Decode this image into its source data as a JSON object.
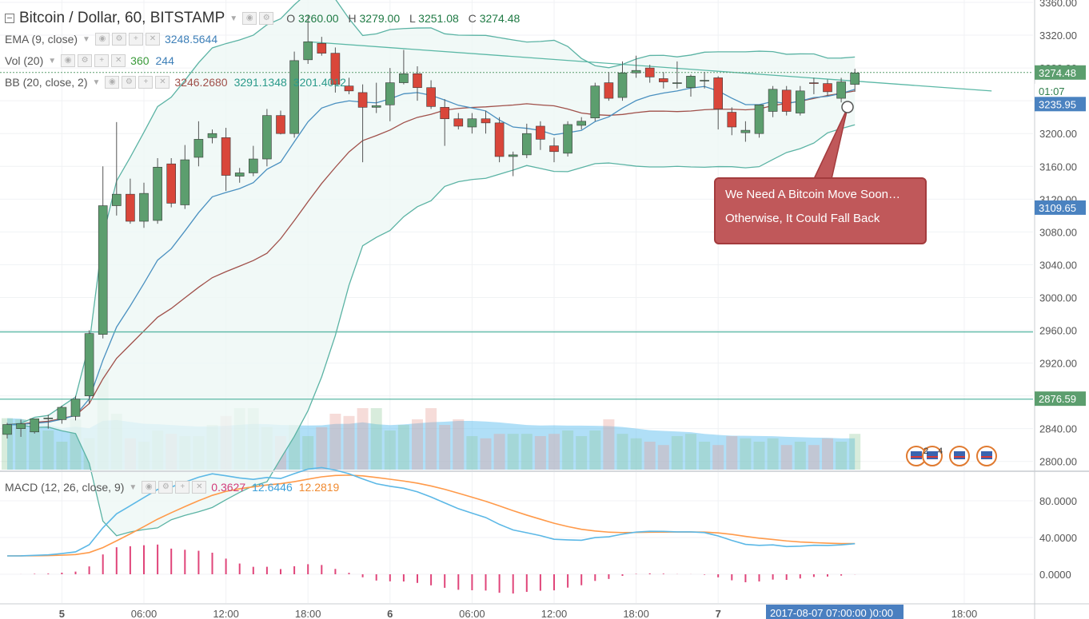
{
  "header": {
    "title": "Bitcoin / Dollar, 60, BITSTAMP",
    "ohlc": {
      "o_label": "O",
      "o": "3260.00",
      "h_label": "H",
      "h": "3279.00",
      "l_label": "L",
      "l": "3251.08",
      "c_label": "C",
      "c": "3274.48"
    }
  },
  "indicators": {
    "ema": {
      "name": "EMA (9, close)",
      "value": "3248.5644"
    },
    "vol": {
      "name": "Vol (20)",
      "value1": "360",
      "value2": "244"
    },
    "bb": {
      "name": "BB (20, close, 2)",
      "v1": "3246.2680",
      "v2": "3291.1348",
      "v3": "3201.4012"
    },
    "macd": {
      "name": "MACD (12, 26, close, 9)",
      "v1": "0.3627",
      "v2": "12.6446",
      "v3": "12.2819"
    }
  },
  "annotation": {
    "line1": "We Need A Bitcoin Move Soon…",
    "line2": "Otherwise, It Could Fall Back"
  },
  "price_badges": {
    "current": "3274.48",
    "countdown": "01:07",
    "ema": "3235.95",
    "level2": "3109.65",
    "level1": "2876.59"
  },
  "crosshair_label": "2017-08-07 07:00:00 )0:00",
  "event_markers": {
    "number_1": "2",
    "number_2": "4"
  },
  "colors": {
    "up": "#5c9e6e",
    "down": "#d9463a",
    "bb_fill": "#eef7f5",
    "bb_line": "#5bb3a4",
    "ema": "#4a90c0",
    "sma": "#a0504a",
    "vol_area": "#6fc4f0",
    "macd": "#5cb8e6",
    "signal": "#ff9a4a",
    "hist": "#e0457a",
    "hline": "#5bb8a6",
    "badge_cur": "#5c9e6e",
    "badge_blue": "#4a82c0",
    "badge_green": "#5c9e6e",
    "crosshair_bg": "#4a7fc0"
  },
  "chart_data": {
    "type": "candlestick",
    "title": "Bitcoin / Dollar, 60, BITSTAMP",
    "price_ylim": [
      2790,
      3360
    ],
    "price_ticks": [
      2800,
      2840,
      2880,
      2920,
      2960,
      3000,
      3040,
      3080,
      3120,
      3160,
      3200,
      3240,
      3280,
      3320,
      3360
    ],
    "price_tick_labels": [
      "2800.00",
      "2840.00",
      "2880.00",
      "2920.00",
      "2960.00",
      "3000.00",
      "3040.00",
      "3080.00",
      "3120.00",
      "3160.00",
      "3200.00",
      "3240.00",
      "3280.00",
      "3320.00",
      "3360.00"
    ],
    "x_ticks": [
      {
        "i": 4,
        "label": "5"
      },
      {
        "i": 10,
        "label": "06:00"
      },
      {
        "i": 16,
        "label": "12:00"
      },
      {
        "i": 22,
        "label": "18:00"
      },
      {
        "i": 28,
        "label": "6"
      },
      {
        "i": 34,
        "label": "06:00"
      },
      {
        "i": 40,
        "label": "12:00"
      },
      {
        "i": 46,
        "label": "18:00"
      },
      {
        "i": 52,
        "label": "7"
      },
      {
        "i": 70,
        "label": "18:00"
      }
    ],
    "candles": [
      {
        "o": 2833,
        "h": 2847,
        "l": 2828,
        "c": 2845
      },
      {
        "o": 2840,
        "h": 2851,
        "l": 2830,
        "c": 2846
      },
      {
        "o": 2836,
        "h": 2852,
        "l": 2834,
        "c": 2852
      },
      {
        "o": 2852,
        "h": 2857,
        "l": 2840,
        "c": 2853
      },
      {
        "o": 2851,
        "h": 2868,
        "l": 2846,
        "c": 2866
      },
      {
        "o": 2855,
        "h": 2880,
        "l": 2850,
        "c": 2876
      },
      {
        "o": 2880,
        "h": 2960,
        "l": 2870,
        "c": 2956
      },
      {
        "o": 2955,
        "h": 3160,
        "l": 2950,
        "c": 3112
      },
      {
        "o": 3112,
        "h": 3214,
        "l": 3100,
        "c": 3126
      },
      {
        "o": 3126,
        "h": 3145,
        "l": 3090,
        "c": 3093
      },
      {
        "o": 3093,
        "h": 3140,
        "l": 3085,
        "c": 3127
      },
      {
        "o": 3094,
        "h": 3170,
        "l": 3090,
        "c": 3159
      },
      {
        "o": 3163,
        "h": 3170,
        "l": 3110,
        "c": 3115
      },
      {
        "o": 3113,
        "h": 3186,
        "l": 3108,
        "c": 3168
      },
      {
        "o": 3171,
        "h": 3215,
        "l": 3160,
        "c": 3193
      },
      {
        "o": 3195,
        "h": 3205,
        "l": 3188,
        "c": 3200
      },
      {
        "o": 3195,
        "h": 3207,
        "l": 3130,
        "c": 3149
      },
      {
        "o": 3148,
        "h": 3158,
        "l": 3140,
        "c": 3152
      },
      {
        "o": 3152,
        "h": 3185,
        "l": 3148,
        "c": 3169
      },
      {
        "o": 3169,
        "h": 3230,
        "l": 3160,
        "c": 3222
      },
      {
        "o": 3222,
        "h": 3228,
        "l": 3199,
        "c": 3200
      },
      {
        "o": 3200,
        "h": 3300,
        "l": 3195,
        "c": 3289
      },
      {
        "o": 3290,
        "h": 3345,
        "l": 3285,
        "c": 3312
      },
      {
        "o": 3310,
        "h": 3318,
        "l": 3295,
        "c": 3298
      },
      {
        "o": 3298,
        "h": 3305,
        "l": 3250,
        "c": 3260
      },
      {
        "o": 3258,
        "h": 3268,
        "l": 3248,
        "c": 3252
      },
      {
        "o": 3250,
        "h": 3260,
        "l": 3165,
        "c": 3232
      },
      {
        "o": 3232,
        "h": 3262,
        "l": 3225,
        "c": 3234
      },
      {
        "o": 3235,
        "h": 3280,
        "l": 3215,
        "c": 3262
      },
      {
        "o": 3262,
        "h": 3302,
        "l": 3260,
        "c": 3273
      },
      {
        "o": 3273,
        "h": 3282,
        "l": 3240,
        "c": 3256
      },
      {
        "o": 3256,
        "h": 3265,
        "l": 3230,
        "c": 3233
      },
      {
        "o": 3232,
        "h": 3242,
        "l": 3185,
        "c": 3218
      },
      {
        "o": 3218,
        "h": 3225,
        "l": 3205,
        "c": 3209
      },
      {
        "o": 3208,
        "h": 3225,
        "l": 3200,
        "c": 3218
      },
      {
        "o": 3218,
        "h": 3228,
        "l": 3200,
        "c": 3213
      },
      {
        "o": 3213,
        "h": 3220,
        "l": 3165,
        "c": 3172
      },
      {
        "o": 3172,
        "h": 3178,
        "l": 3148,
        "c": 3174
      },
      {
        "o": 3174,
        "h": 3212,
        "l": 3170,
        "c": 3200
      },
      {
        "o": 3209,
        "h": 3215,
        "l": 3180,
        "c": 3193
      },
      {
        "o": 3185,
        "h": 3195,
        "l": 3165,
        "c": 3178
      },
      {
        "o": 3176,
        "h": 3215,
        "l": 3172,
        "c": 3211
      },
      {
        "o": 3210,
        "h": 3220,
        "l": 3205,
        "c": 3215
      },
      {
        "o": 3219,
        "h": 3262,
        "l": 3215,
        "c": 3258
      },
      {
        "o": 3262,
        "h": 3275,
        "l": 3240,
        "c": 3243
      },
      {
        "o": 3244,
        "h": 3288,
        "l": 3240,
        "c": 3274
      },
      {
        "o": 3274,
        "h": 3295,
        "l": 3268,
        "c": 3277
      },
      {
        "o": 3280,
        "h": 3284,
        "l": 3262,
        "c": 3269
      },
      {
        "o": 3267,
        "h": 3275,
        "l": 3255,
        "c": 3263
      },
      {
        "o": 3262,
        "h": 3288,
        "l": 3255,
        "c": 3262
      },
      {
        "o": 3256,
        "h": 3272,
        "l": 3245,
        "c": 3270
      },
      {
        "o": 3264,
        "h": 3275,
        "l": 3255,
        "c": 3265
      },
      {
        "o": 3268,
        "h": 3270,
        "l": 3205,
        "c": 3230
      },
      {
        "o": 3226,
        "h": 3232,
        "l": 3198,
        "c": 3208
      },
      {
        "o": 3201,
        "h": 3215,
        "l": 3190,
        "c": 3204
      },
      {
        "o": 3200,
        "h": 3235,
        "l": 3195,
        "c": 3235
      },
      {
        "o": 3227,
        "h": 3258,
        "l": 3220,
        "c": 3254
      },
      {
        "o": 3253,
        "h": 3258,
        "l": 3222,
        "c": 3227
      },
      {
        "o": 3225,
        "h": 3258,
        "l": 3222,
        "c": 3252
      },
      {
        "o": 3262,
        "h": 3268,
        "l": 3248,
        "c": 3261
      },
      {
        "o": 3261,
        "h": 3266,
        "l": 3246,
        "c": 3251
      },
      {
        "o": 3243,
        "h": 3268,
        "l": 3238,
        "c": 3263
      },
      {
        "o": 3260,
        "h": 3279,
        "l": 3251,
        "c": 3274
      }
    ],
    "volumes": [
      46,
      45,
      35,
      35,
      25,
      45,
      28,
      90,
      50,
      28,
      25,
      35,
      32,
      30,
      30,
      40,
      48,
      55,
      55,
      38,
      30,
      40,
      30,
      38,
      50,
      48,
      55,
      55,
      35,
      40,
      45,
      55,
      40,
      45,
      30,
      28,
      32,
      32,
      32,
      30,
      32,
      35,
      30,
      35,
      45,
      32,
      28,
      25,
      22,
      30,
      32,
      25,
      22,
      30,
      28,
      25,
      28,
      22,
      25,
      22,
      28,
      25,
      32
    ],
    "hlines": [
      2958,
      2876
    ],
    "trendline": {
      "from": {
        "i": 22,
        "p": 3312
      },
      "to": {
        "i": 72,
        "p": 3252
      }
    }
  }
}
